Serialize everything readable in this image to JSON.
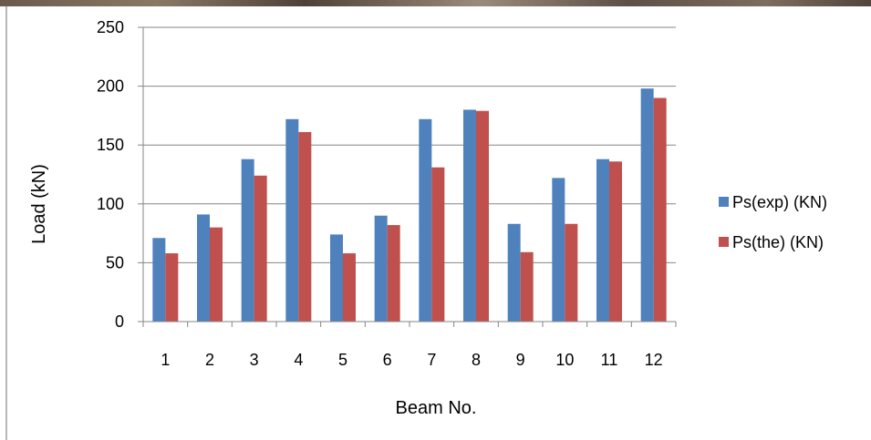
{
  "chart_data": {
    "type": "bar",
    "title": "",
    "xlabel": "Beam No.",
    "ylabel": "Load (kN)",
    "categories": [
      "1",
      "2",
      "3",
      "4",
      "5",
      "6",
      "7",
      "8",
      "9",
      "10",
      "11",
      "12"
    ],
    "ylim": [
      0,
      250
    ],
    "yticks": [
      "0",
      "50",
      "100",
      "150",
      "200",
      "250"
    ],
    "grid": true,
    "legend_position": "right",
    "series": [
      {
        "name": "Ps(exp) (KN)",
        "color": "#4f81bd",
        "values": [
          71,
          91,
          138,
          172,
          74,
          90,
          172,
          180,
          83,
          122,
          138,
          198
        ]
      },
      {
        "name": "Ps(the) (KN)",
        "color": "#c0504d",
        "values": [
          58,
          80,
          124,
          161,
          58,
          82,
          131,
          179,
          59,
          83,
          136,
          190
        ]
      }
    ]
  }
}
